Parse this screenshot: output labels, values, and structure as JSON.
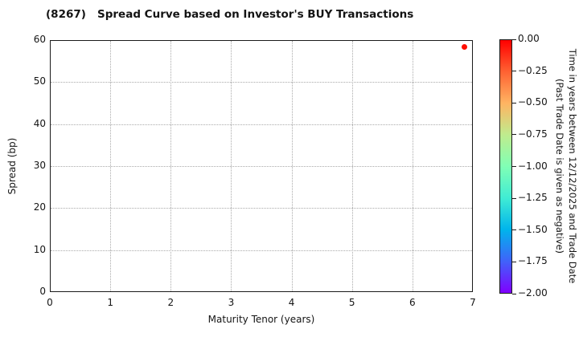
{
  "title": "(8267)   Spread Curve based on Investor's BUY Transactions",
  "chart_data": {
    "type": "scatter",
    "title": "(8267)   Spread Curve based on Investor's BUY Transactions",
    "xlabel": "Maturity Tenor (years)",
    "ylabel": "Spread (bp)",
    "xlim": [
      0,
      7
    ],
    "ylim": [
      0,
      60
    ],
    "x_ticks": [
      0,
      1,
      2,
      3,
      4,
      5,
      6,
      7
    ],
    "y_ticks": [
      0,
      10,
      20,
      30,
      40,
      50,
      60
    ],
    "grid": true,
    "legend_position": "none",
    "points": [
      {
        "x": 6.85,
        "y": 58.5,
        "color_value": 0.0,
        "color": "#ff0d00"
      }
    ],
    "colorbar": {
      "label_line1": "Time in years between 12/12/2025 and Trade Date",
      "label_line2": "(Past Trade Date is given as negative)",
      "range": [
        -2.0,
        0.0
      ],
      "tick_labels": [
        "0.00",
        "−0.25",
        "−0.50",
        "−0.75",
        "−1.00",
        "−1.25",
        "−1.50",
        "−1.75",
        "−2.00"
      ],
      "colormap": "rainbow",
      "gradient_stops_top_to_bottom": [
        "#ff0000",
        "#ff6232",
        "#ffb462",
        "#bfec8e",
        "#80ffb5",
        "#40ecd4",
        "#00b4ec",
        "#4062fa",
        "#8000ff"
      ]
    }
  }
}
